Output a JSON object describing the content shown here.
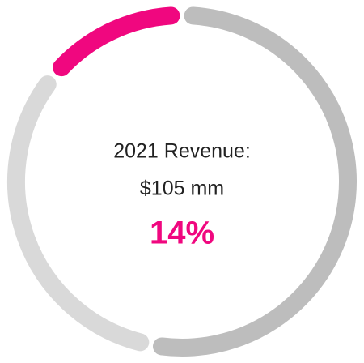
{
  "chart_data": {
    "type": "donut",
    "title": "2021 Revenue:",
    "subtitle": "$105 mm",
    "values": [
      14,
      53,
      33
    ],
    "value_labels": [
      "14%",
      null,
      null
    ],
    "colors": [
      "#f0077f",
      "#bdbdbd",
      "#d9d9d9"
    ]
  }
}
